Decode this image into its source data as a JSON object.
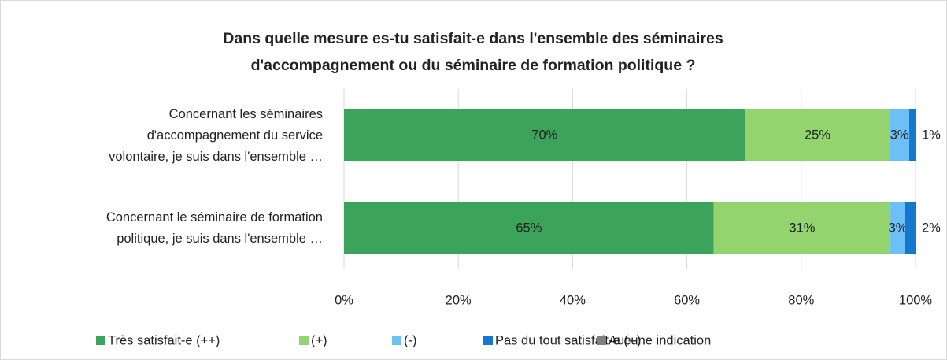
{
  "chart_data": {
    "type": "stacked_barh",
    "title": "Dans quelle mesure es-tu satisfait-e dans l'ensemble des séminaires\nd'accompagnement ou du séminaire de formation politique ?",
    "categories": [
      "Concernant les séminaires\nd'accompagnement du service\nvolontaire, je suis dans l'ensemble …",
      "Concernant le séminaire de formation\npolitique, je suis dans l'ensemble …"
    ],
    "series": [
      {
        "name": "Très satisfait-e (++)",
        "color": "#3ca35a",
        "values": [
          70.2,
          64.7
        ],
        "value_labels": [
          "70%",
          "65%"
        ]
      },
      {
        "name": "(+)",
        "color": "#93d46f",
        "values": [
          25.3,
          30.9
        ],
        "value_labels": [
          "25%",
          "31%"
        ]
      },
      {
        "name": "(-)",
        "color": "#6cc0f6",
        "values": [
          3.4,
          2.6
        ],
        "value_labels": [
          "3%",
          "3%"
        ]
      },
      {
        "name": "Pas du tout satisfait-e (--)",
        "color": "#1478d0",
        "values": [
          1.1,
          1.8
        ],
        "value_labels": [
          "1%",
          "2%"
        ]
      },
      {
        "name": "Aucune indication",
        "color": "#7f7f7f",
        "values": [
          0,
          0
        ]
      }
    ],
    "xlim": [
      0,
      100
    ],
    "xticks": [
      {
        "value": 0,
        "label": "0%"
      },
      {
        "value": 20,
        "label": "20%"
      },
      {
        "value": 40,
        "label": "40%"
      },
      {
        "value": 60,
        "label": "60%"
      },
      {
        "value": 80,
        "label": "80%"
      },
      {
        "value": 100,
        "label": "100%"
      }
    ],
    "grid": true,
    "legend": "bottom"
  }
}
